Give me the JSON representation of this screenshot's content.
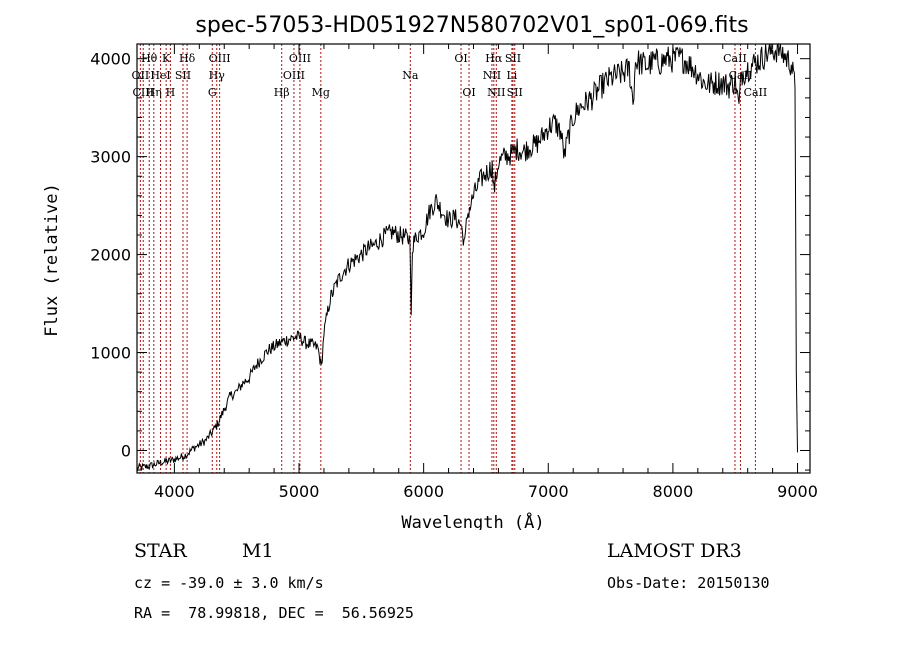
{
  "chart_data": {
    "type": "line",
    "title": "spec-57053-HD051927N580702V01_sp01-069.fits",
    "xlabel": "Wavelength (Å)",
    "ylabel": "Flux (relative)",
    "xlim": [
      3700,
      9100
    ],
    "ylim": [
      -230,
      4150
    ],
    "xticks": [
      4000,
      5000,
      6000,
      7000,
      8000,
      9000
    ],
    "yticks": [
      0,
      1000,
      2000,
      3000,
      4000
    ],
    "series": [
      {
        "name": "flux",
        "x": [
          3700,
          3750,
          3800,
          3850,
          3900,
          3950,
          4000,
          4050,
          4100,
          4150,
          4200,
          4250,
          4300,
          4350,
          4400,
          4450,
          4500,
          4550,
          4600,
          4650,
          4700,
          4750,
          4800,
          4850,
          4900,
          4950,
          5000,
          5050,
          5100,
          5150,
          5180,
          5200,
          5250,
          5300,
          5350,
          5400,
          5450,
          5500,
          5550,
          5600,
          5650,
          5700,
          5750,
          5800,
          5850,
          5890,
          5900,
          5910,
          5950,
          6000,
          6050,
          6100,
          6150,
          6200,
          6250,
          6300,
          6330,
          6350,
          6400,
          6450,
          6500,
          6550,
          6563,
          6600,
          6650,
          6700,
          6750,
          6800,
          6850,
          6900,
          6950,
          7000,
          7050,
          7100,
          7130,
          7150,
          7200,
          7250,
          7300,
          7350,
          7400,
          7450,
          7500,
          7550,
          7600,
          7650,
          7680,
          7700,
          7750,
          7800,
          7850,
          7900,
          7950,
          8000,
          8050,
          8100,
          8150,
          8200,
          8250,
          8300,
          8350,
          8400,
          8450,
          8500,
          8530,
          8550,
          8600,
          8650,
          8700,
          8750,
          8800,
          8850,
          8900,
          8950,
          8980,
          8990,
          9000
        ],
        "y": [
          -180,
          -170,
          -160,
          -140,
          -120,
          -110,
          -90,
          -70,
          -40,
          20,
          60,
          100,
          180,
          280,
          420,
          560,
          600,
          690,
          740,
          860,
          940,
          1020,
          1060,
          1100,
          1130,
          1150,
          1160,
          1100,
          1080,
          1050,
          850,
          1200,
          1550,
          1700,
          1820,
          1900,
          1950,
          2000,
          2060,
          2090,
          2150,
          2200,
          2230,
          2200,
          2180,
          2150,
          1380,
          2100,
          2200,
          2250,
          2450,
          2550,
          2440,
          2350,
          2380,
          2300,
          2100,
          2400,
          2600,
          2750,
          2830,
          2900,
          2650,
          2940,
          3000,
          3020,
          3080,
          3050,
          3100,
          3120,
          3200,
          3300,
          3350,
          3250,
          3000,
          3150,
          3400,
          3500,
          3550,
          3600,
          3680,
          3750,
          3800,
          3830,
          3850,
          3900,
          3550,
          3980,
          3950,
          3930,
          3980,
          3960,
          4000,
          3990,
          4010,
          3980,
          3920,
          3850,
          3750,
          3740,
          3760,
          3750,
          3720,
          3780,
          3500,
          3850,
          3900,
          3950,
          3990,
          4050,
          4080,
          4100,
          4020,
          3950,
          3700,
          800,
          -20
        ]
      }
    ],
    "spectral_lines": [
      {
        "label": "Hθ",
        "wl": 3798,
        "row": 0
      },
      {
        "label": "OII",
        "wl": 3727,
        "row": 1
      },
      {
        "label": "CIII",
        "wl": 3750,
        "row": 2
      },
      {
        "label": "Hη",
        "wl": 3835,
        "row": 2
      },
      {
        "label": "HeI",
        "wl": 3889,
        "row": 1
      },
      {
        "label": "K",
        "wl": 3934,
        "row": 0
      },
      {
        "label": "H",
        "wl": 3968,
        "row": 2
      },
      {
        "label": "SII",
        "wl": 4069,
        "row": 1
      },
      {
        "label": "Hδ",
        "wl": 4102,
        "row": 0
      },
      {
        "label": "OIII",
        "wl": 4363,
        "row": 0
      },
      {
        "label": "Hγ",
        "wl": 4340,
        "row": 1
      },
      {
        "label": "G",
        "wl": 4304,
        "row": 2
      },
      {
        "label": "Hβ",
        "wl": 4861,
        "row": 2
      },
      {
        "label": "OIII",
        "wl": 5007,
        "row": 0
      },
      {
        "label": "OIII",
        "wl": 4959,
        "row": 1
      },
      {
        "label": "Mg",
        "wl": 5175,
        "row": 2
      },
      {
        "label": "Na",
        "wl": 5893,
        "row": 1
      },
      {
        "label": "OI",
        "wl": 6300,
        "row": 0
      },
      {
        "label": "OI",
        "wl": 6364,
        "row": 2
      },
      {
        "label": "Hα",
        "wl": 6563,
        "row": 0
      },
      {
        "label": "NII",
        "wl": 6548,
        "row": 1
      },
      {
        "label": "NII",
        "wl": 6583,
        "row": 2
      },
      {
        "label": "SII",
        "wl": 6717,
        "row": 0
      },
      {
        "label": "Li",
        "wl": 6708,
        "row": 1
      },
      {
        "label": "SII",
        "wl": 6731,
        "row": 2
      },
      {
        "label": "CaII",
        "wl": 8498,
        "row": 0
      },
      {
        "label": "CaII",
        "wl": 8542,
        "row": 1
      },
      {
        "label": "CaII",
        "wl": 8662,
        "row": 2
      }
    ]
  },
  "info": {
    "object_class": "STAR",
    "subclass": "M1",
    "survey": "LAMOST DR3",
    "redshift_line": "cz = -39.0 ± 3.0 km/s",
    "obs_date": "Obs-Date: 20150130",
    "coords": "RA =  78.99818, DEC =  56.56925"
  },
  "colors": {
    "line_markers": "#b01010",
    "spectrum": "#000000"
  }
}
